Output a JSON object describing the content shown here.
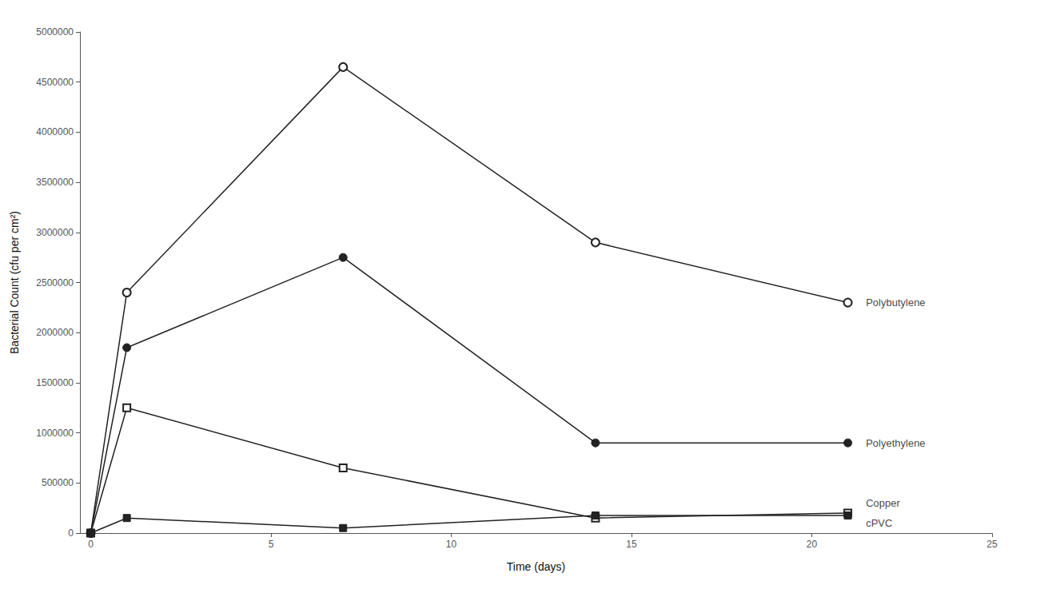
{
  "chart_data": {
    "type": "line",
    "x": [
      0,
      1,
      7,
      14,
      21
    ],
    "series": [
      {
        "name": "Polybutylene",
        "values": [
          0,
          2400000,
          4650000,
          2900000,
          2300000
        ],
        "color": "#222222",
        "marker": "circle-open"
      },
      {
        "name": "Polyethylene",
        "values": [
          0,
          1850000,
          2750000,
          900000,
          900000
        ],
        "color": "#222222",
        "marker": "circle"
      },
      {
        "name": "cPVC",
        "values": [
          0,
          1250000,
          650000,
          150000,
          200000
        ],
        "color": "#222222",
        "marker": "square-open"
      },
      {
        "name": "Copper",
        "values": [
          0,
          150000,
          50000,
          175000,
          175000
        ],
        "color": "#222222",
        "marker": "square"
      }
    ],
    "xlabel": "Time (days)",
    "ylabel": "Bacterial Count (cfu per cm²)",
    "xlim": [
      -0.3,
      25
    ],
    "ylim": [
      0,
      5000000
    ],
    "xticks": [
      0,
      5,
      10,
      15,
      20,
      25
    ],
    "yticks": [
      0,
      500000,
      1000000,
      1500000,
      2000000,
      2500000,
      3000000,
      3500000,
      4000000,
      4500000,
      5000000
    ],
    "annotations": [
      {
        "text": "Polybutylene",
        "x": 21.5,
        "y": 2300000
      },
      {
        "text": "Polyethylene",
        "x": 21.5,
        "y": 900000
      },
      {
        "text": "Copper",
        "x": 21.5,
        "y": 300000
      },
      {
        "text": "cPVC",
        "x": 21.5,
        "y": 100000
      }
    ],
    "grid": false
  }
}
